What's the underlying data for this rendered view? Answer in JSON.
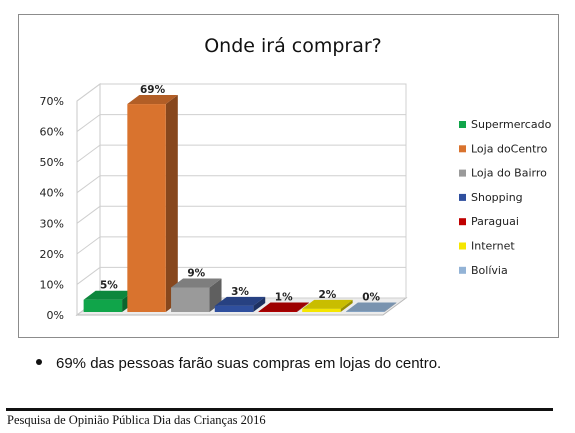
{
  "chart_data": {
    "type": "bar",
    "title": "Onde irá comprar?",
    "categories": [
      "Supermercado",
      "Loja doCentro",
      "Loja do Bairro",
      "Shopping",
      "Paraguai",
      "Internet",
      "Bolívia"
    ],
    "values": [
      5,
      69,
      9,
      3,
      1,
      2,
      0
    ],
    "data_labels": [
      "5%",
      "69%",
      "9%",
      "3%",
      "1%",
      "2%",
      "0%"
    ],
    "colors": [
      "#10a54a",
      "#d9732e",
      "#9a9a9a",
      "#2f4f9e",
      "#c00000",
      "#f5e600",
      "#93b3d6"
    ],
    "yticks": [
      "0%",
      "10%",
      "20%",
      "30%",
      "40%",
      "50%",
      "60%",
      "70%"
    ],
    "ylim": [
      0,
      70
    ],
    "legend_position": "right",
    "grid": true,
    "style": "3d"
  },
  "bullet": "69% das pessoas farão suas compras em lojas do centro.",
  "footer": "Pesquisa de Opinião Pública Dia das Crianças 2016"
}
